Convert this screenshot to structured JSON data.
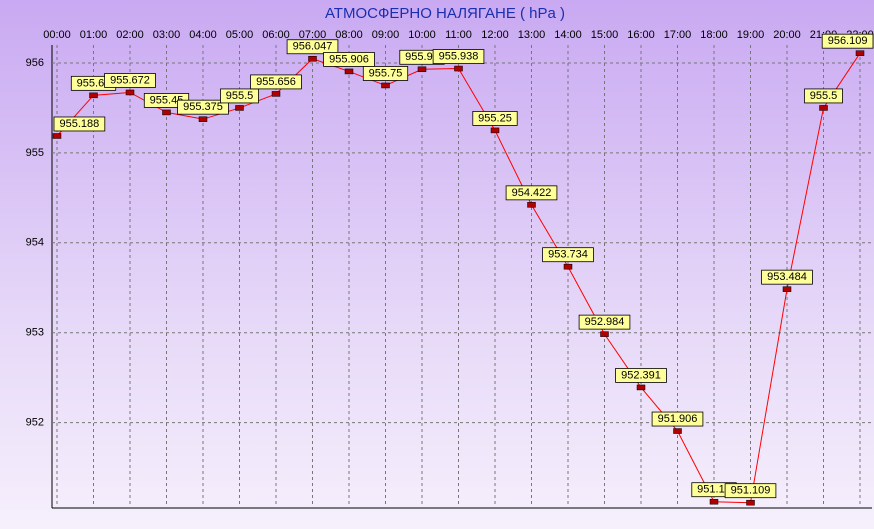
{
  "chart_data": {
    "type": "line",
    "title": "АТМОСФЕРНО НАЛЯГАНЕ  ( hPa )",
    "categories": [
      "00:00",
      "01:00",
      "02:00",
      "03:00",
      "04:00",
      "05:00",
      "06:00",
      "07:00",
      "08:00",
      "09:00",
      "10:00",
      "11:00",
      "12:00",
      "13:00",
      "14:00",
      "15:00",
      "16:00",
      "17:00",
      "18:00",
      "19:00",
      "20:00",
      "21:00",
      "22:00"
    ],
    "values": [
      955.188,
      955.64,
      955.672,
      955.45,
      955.375,
      955.5,
      955.656,
      956.047,
      955.906,
      955.75,
      955.93,
      955.938,
      955.25,
      954.422,
      953.734,
      952.984,
      952.391,
      951.906,
      951.12,
      951.109,
      953.484,
      955.5,
      956.109
    ],
    "color": "#ff0000",
    "marker_color": "#b00000",
    "ylim": [
      951.05,
      956.2
    ],
    "yticks": [
      952,
      953,
      954,
      955,
      956
    ],
    "grid": true
  }
}
